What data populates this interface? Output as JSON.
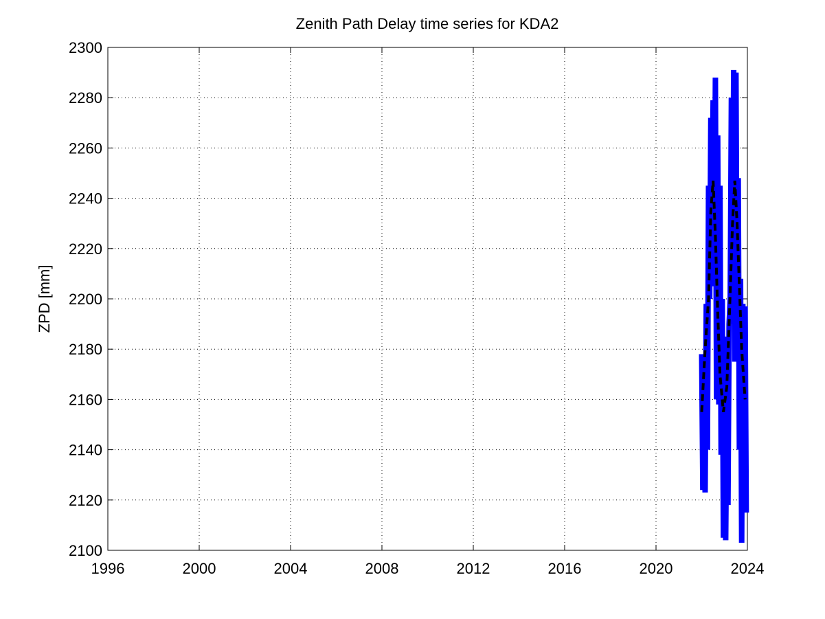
{
  "chart_data": {
    "type": "line",
    "title": "Zenith Path Delay time series for KDA2",
    "y_label": "ZPD [mm]",
    "xlim": [
      1996,
      2024
    ],
    "xticks": [
      1996,
      2000,
      2004,
      2008,
      2012,
      2016,
      2020,
      2024
    ],
    "ylim": [
      2100,
      2300
    ],
    "yticks": [
      2100,
      2120,
      2140,
      2160,
      2180,
      2200,
      2220,
      2240,
      2260,
      2280,
      2300
    ],
    "grid": true,
    "series": [
      {
        "color": "#0000ff",
        "style": "solid",
        "x": [
          2022.0,
          2022.05,
          2022.1,
          2022.15,
          2022.2,
          2022.25,
          2022.3,
          2022.35,
          2022.4,
          2022.45,
          2022.5,
          2022.55,
          2022.6,
          2022.65,
          2022.7,
          2022.75,
          2022.8,
          2022.85,
          2022.9,
          2022.95,
          2023.0,
          2023.05,
          2023.1,
          2023.15,
          2023.2,
          2023.25,
          2023.3,
          2023.35,
          2023.4,
          2023.45,
          2023.5,
          2023.55,
          2023.6,
          2023.65,
          2023.7,
          2023.75,
          2023.8,
          2023.85,
          2023.9,
          2023.95
        ],
        "values": [
          2178,
          2124,
          2175,
          2123,
          2198,
          2140,
          2245,
          2200,
          2272,
          2230,
          2279,
          2205,
          2288,
          2160,
          2265,
          2158,
          2245,
          2138,
          2200,
          2105,
          2185,
          2104,
          2160,
          2118,
          2190,
          2200,
          2280,
          2190,
          2291,
          2175,
          2290,
          2185,
          2248,
          2140,
          2208,
          2103,
          2198,
          2130,
          2197,
          2115
        ]
      },
      {
        "color": "#000000",
        "style": "dashed",
        "x": [
          2022.0,
          2022.15,
          2022.3,
          2022.4,
          2022.5,
          2022.6,
          2022.7,
          2022.8,
          2022.95,
          2023.1,
          2023.2,
          2023.35,
          2023.45,
          2023.55,
          2023.65,
          2023.75,
          2023.9
        ],
        "values": [
          2155,
          2180,
          2200,
          2235,
          2247,
          2225,
          2195,
          2170,
          2155,
          2165,
          2190,
          2230,
          2247,
          2230,
          2205,
          2180,
          2160
        ]
      }
    ]
  }
}
